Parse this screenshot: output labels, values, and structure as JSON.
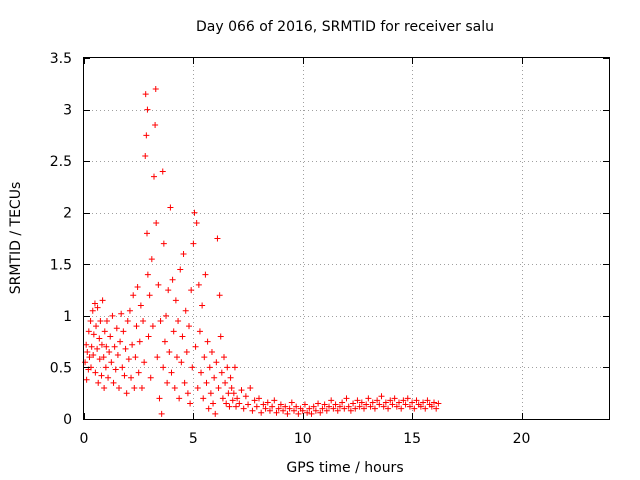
{
  "chart_data": {
    "type": "scatter",
    "title": "Day 066 of 2016, SRMTID for receiver salu",
    "xlabel": "GPS time / hours",
    "ylabel": "SRMTID / TECUs",
    "xlim": [
      0,
      24
    ],
    "ylim": [
      0,
      3.5
    ],
    "grid": true,
    "marker": "+",
    "marker_color": "#ff0000",
    "xticks": [
      0,
      5,
      10,
      15,
      20
    ],
    "xtick_labels": [
      "0",
      "5",
      "10",
      "15",
      "20"
    ],
    "yticks": [
      0,
      0.5,
      1,
      1.5,
      2,
      2.5,
      3,
      3.5
    ],
    "ytick_labels": [
      "0",
      "0.5",
      "1",
      "1.5",
      "2",
      "2.5",
      "3",
      "3.5"
    ],
    "series": [
      {
        "name": "SRMTID",
        "points": [
          [
            0.05,
            0.55
          ],
          [
            0.1,
            0.72
          ],
          [
            0.12,
            0.38
          ],
          [
            0.15,
            0.65
          ],
          [
            0.2,
            0.48
          ],
          [
            0.22,
            0.85
          ],
          [
            0.25,
            0.6
          ],
          [
            0.3,
            0.95
          ],
          [
            0.32,
            0.5
          ],
          [
            0.35,
            0.7
          ],
          [
            0.4,
            1.05
          ],
          [
            0.42,
            0.62
          ],
          [
            0.45,
            0.82
          ],
          [
            0.5,
            1.12
          ],
          [
            0.52,
            0.45
          ],
          [
            0.55,
            0.9
          ],
          [
            0.6,
            0.68
          ],
          [
            0.62,
            1.08
          ],
          [
            0.65,
            0.35
          ],
          [
            0.7,
            0.78
          ],
          [
            0.72,
            0.58
          ],
          [
            0.75,
            0.95
          ],
          [
            0.8,
            0.42
          ],
          [
            0.82,
            0.72
          ],
          [
            0.85,
            1.15
          ],
          [
            0.9,
            0.6
          ],
          [
            0.92,
            0.3
          ],
          [
            0.95,
            0.85
          ],
          [
            1.0,
            0.5
          ],
          [
            1.02,
            0.7
          ],
          [
            1.05,
            0.95
          ],
          [
            1.1,
            0.4
          ],
          [
            1.15,
            0.65
          ],
          [
            1.2,
            0.8
          ],
          [
            1.25,
            0.55
          ],
          [
            1.3,
            1.0
          ],
          [
            1.35,
            0.35
          ],
          [
            1.4,
            0.7
          ],
          [
            1.45,
            0.48
          ],
          [
            1.5,
            0.88
          ],
          [
            1.55,
            0.62
          ],
          [
            1.6,
            0.3
          ],
          [
            1.65,
            0.75
          ],
          [
            1.7,
            1.02
          ],
          [
            1.75,
            0.5
          ],
          [
            1.8,
            0.85
          ],
          [
            1.85,
            0.42
          ],
          [
            1.9,
            0.68
          ],
          [
            1.95,
            0.25
          ],
          [
            2.0,
            0.95
          ],
          [
            2.05,
            0.58
          ],
          [
            2.1,
            1.05
          ],
          [
            2.15,
            0.4
          ],
          [
            2.2,
            0.72
          ],
          [
            2.25,
            1.2
          ],
          [
            2.3,
            0.3
          ],
          [
            2.35,
            0.6
          ],
          [
            2.4,
            0.9
          ],
          [
            2.45,
            1.28
          ],
          [
            2.5,
            0.45
          ],
          [
            2.55,
            0.75
          ],
          [
            2.6,
            1.1
          ],
          [
            2.65,
            0.3
          ],
          [
            2.7,
            0.95
          ],
          [
            2.75,
            0.55
          ],
          [
            2.8,
            2.55
          ],
          [
            2.82,
            3.15
          ],
          [
            2.85,
            2.75
          ],
          [
            2.88,
            1.8
          ],
          [
            2.9,
            3.0
          ],
          [
            2.92,
            1.4
          ],
          [
            2.95,
            0.8
          ],
          [
            3.0,
            1.2
          ],
          [
            3.05,
            0.4
          ],
          [
            3.1,
            1.55
          ],
          [
            3.15,
            0.9
          ],
          [
            3.2,
            2.35
          ],
          [
            3.25,
            2.85
          ],
          [
            3.28,
            3.2
          ],
          [
            3.3,
            1.9
          ],
          [
            3.35,
            0.6
          ],
          [
            3.4,
            1.3
          ],
          [
            3.45,
            0.2
          ],
          [
            3.5,
            0.95
          ],
          [
            3.55,
            0.05
          ],
          [
            3.6,
            2.4
          ],
          [
            3.62,
            0.5
          ],
          [
            3.65,
            1.7
          ],
          [
            3.7,
            0.75
          ],
          [
            3.75,
            1.0
          ],
          [
            3.8,
            0.35
          ],
          [
            3.85,
            1.25
          ],
          [
            3.9,
            0.65
          ],
          [
            3.95,
            2.05
          ],
          [
            4.0,
            0.45
          ],
          [
            4.05,
            1.35
          ],
          [
            4.1,
            0.85
          ],
          [
            4.15,
            0.3
          ],
          [
            4.2,
            1.15
          ],
          [
            4.25,
            0.6
          ],
          [
            4.3,
            0.95
          ],
          [
            4.35,
            0.2
          ],
          [
            4.4,
            1.45
          ],
          [
            4.45,
            0.55
          ],
          [
            4.5,
            0.8
          ],
          [
            4.55,
            1.6
          ],
          [
            4.6,
            0.35
          ],
          [
            4.65,
            1.05
          ],
          [
            4.7,
            0.65
          ],
          [
            4.75,
            0.25
          ],
          [
            4.8,
            0.9
          ],
          [
            4.85,
            0.15
          ],
          [
            4.9,
            1.25
          ],
          [
            4.95,
            0.5
          ],
          [
            5.0,
            1.7
          ],
          [
            5.05,
            2.0
          ],
          [
            5.1,
            0.7
          ],
          [
            5.15,
            1.9
          ],
          [
            5.2,
            0.3
          ],
          [
            5.25,
            1.3
          ],
          [
            5.3,
            0.85
          ],
          [
            5.35,
            0.45
          ],
          [
            5.4,
            1.1
          ],
          [
            5.45,
            0.2
          ],
          [
            5.5,
            0.6
          ],
          [
            5.55,
            1.4
          ],
          [
            5.6,
            0.35
          ],
          [
            5.65,
            0.75
          ],
          [
            5.7,
            0.1
          ],
          [
            5.75,
            0.5
          ],
          [
            5.8,
            0.25
          ],
          [
            5.85,
            0.65
          ],
          [
            5.9,
            0.15
          ],
          [
            5.95,
            0.4
          ],
          [
            6.0,
            0.05
          ],
          [
            6.05,
            0.55
          ],
          [
            6.1,
            1.75
          ],
          [
            6.15,
            0.3
          ],
          [
            6.2,
            1.2
          ],
          [
            6.25,
            0.8
          ],
          [
            6.3,
            0.45
          ],
          [
            6.35,
            0.2
          ],
          [
            6.4,
            0.6
          ],
          [
            6.45,
            0.35
          ],
          [
            6.5,
            0.15
          ],
          [
            6.55,
            0.5
          ],
          [
            6.6,
            0.25
          ],
          [
            6.65,
            0.12
          ],
          [
            6.7,
            0.4
          ],
          [
            6.75,
            0.3
          ],
          [
            6.8,
            0.18
          ],
          [
            6.85,
            0.25
          ],
          [
            6.9,
            0.5
          ],
          [
            6.95,
            0.12
          ],
          [
            7.0,
            0.2
          ],
          [
            7.1,
            0.15
          ],
          [
            7.2,
            0.28
          ],
          [
            7.3,
            0.1
          ],
          [
            7.4,
            0.22
          ],
          [
            7.5,
            0.14
          ],
          [
            7.6,
            0.3
          ],
          [
            7.7,
            0.08
          ],
          [
            7.8,
            0.18
          ],
          [
            7.9,
            0.12
          ],
          [
            8.0,
            0.2
          ],
          [
            8.1,
            0.06
          ],
          [
            8.2,
            0.14
          ],
          [
            8.3,
            0.1
          ],
          [
            8.4,
            0.16
          ],
          [
            8.5,
            0.08
          ],
          [
            8.6,
            0.12
          ],
          [
            8.7,
            0.18
          ],
          [
            8.8,
            0.06
          ],
          [
            8.9,
            0.1
          ],
          [
            9.0,
            0.14
          ],
          [
            9.1,
            0.08
          ],
          [
            9.2,
            0.12
          ],
          [
            9.3,
            0.05
          ],
          [
            9.4,
            0.1
          ],
          [
            9.5,
            0.16
          ],
          [
            9.6,
            0.08
          ],
          [
            9.7,
            0.12
          ],
          [
            9.8,
            0.05
          ],
          [
            9.9,
            0.1
          ],
          [
            10.0,
            0.08
          ],
          [
            10.1,
            0.14
          ],
          [
            10.2,
            0.06
          ],
          [
            10.3,
            0.1
          ],
          [
            10.4,
            0.05
          ],
          [
            10.5,
            0.12
          ],
          [
            10.6,
            0.08
          ],
          [
            10.7,
            0.15
          ],
          [
            10.8,
            0.06
          ],
          [
            10.9,
            0.1
          ],
          [
            11.0,
            0.14
          ],
          [
            11.1,
            0.08
          ],
          [
            11.2,
            0.12
          ],
          [
            11.3,
            0.18
          ],
          [
            11.4,
            0.1
          ],
          [
            11.5,
            0.14
          ],
          [
            11.6,
            0.08
          ],
          [
            11.7,
            0.12
          ],
          [
            11.8,
            0.16
          ],
          [
            11.9,
            0.1
          ],
          [
            12.0,
            0.2
          ],
          [
            12.1,
            0.12
          ],
          [
            12.2,
            0.08
          ],
          [
            12.3,
            0.15
          ],
          [
            12.4,
            0.1
          ],
          [
            12.5,
            0.18
          ],
          [
            12.6,
            0.12
          ],
          [
            12.7,
            0.16
          ],
          [
            12.8,
            0.1
          ],
          [
            12.9,
            0.14
          ],
          [
            13.0,
            0.2
          ],
          [
            13.1,
            0.12
          ],
          [
            13.2,
            0.16
          ],
          [
            13.3,
            0.1
          ],
          [
            13.4,
            0.18
          ],
          [
            13.5,
            0.14
          ],
          [
            13.6,
            0.22
          ],
          [
            13.7,
            0.12
          ],
          [
            13.8,
            0.16
          ],
          [
            13.9,
            0.1
          ],
          [
            14.0,
            0.18
          ],
          [
            14.1,
            0.14
          ],
          [
            14.2,
            0.2
          ],
          [
            14.3,
            0.12
          ],
          [
            14.4,
            0.16
          ],
          [
            14.5,
            0.1
          ],
          [
            14.6,
            0.18
          ],
          [
            14.7,
            0.14
          ],
          [
            14.8,
            0.2
          ],
          [
            14.9,
            0.12
          ],
          [
            15.0,
            0.16
          ],
          [
            15.1,
            0.1
          ],
          [
            15.2,
            0.18
          ],
          [
            15.3,
            0.14
          ],
          [
            15.4,
            0.12
          ],
          [
            15.5,
            0.16
          ],
          [
            15.6,
            0.1
          ],
          [
            15.7,
            0.18
          ],
          [
            15.8,
            0.14
          ],
          [
            15.9,
            0.12
          ],
          [
            16.0,
            0.16
          ],
          [
            16.1,
            0.1
          ],
          [
            16.2,
            0.15
          ]
        ]
      }
    ]
  }
}
